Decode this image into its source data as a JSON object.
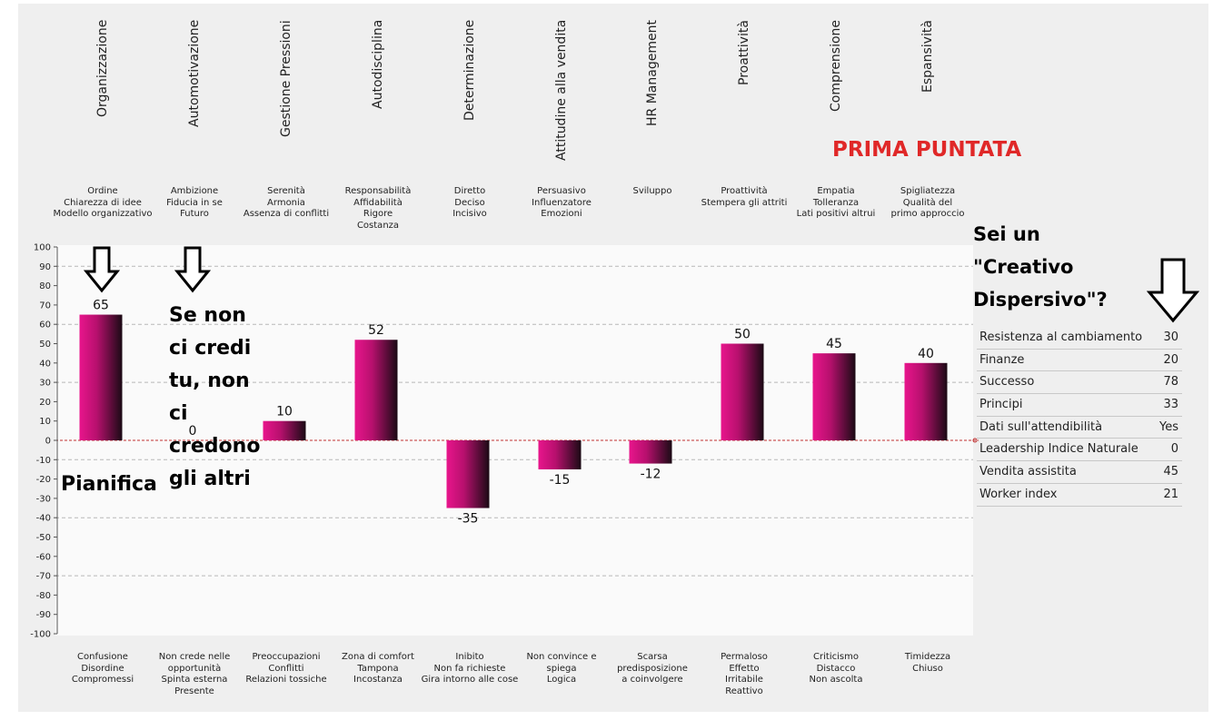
{
  "chart_data": {
    "type": "bar",
    "title": "",
    "xlabel": "",
    "ylabel": "",
    "ylim": [
      -100,
      100
    ],
    "yticks": [
      100,
      90,
      80,
      70,
      60,
      50,
      40,
      30,
      20,
      10,
      0,
      -10,
      -20,
      -30,
      -40,
      -50,
      -60,
      -70,
      -80,
      -90,
      -100
    ],
    "grid": "dashed horizontal",
    "categories": [
      "Organizzazione",
      "Automotivazione",
      "Gestione Pressioni",
      "Autodisciplina",
      "Determinazione",
      "Attitudine alla vendita",
      "HR Management",
      "Proattività",
      "Comprensione",
      "Espansività"
    ],
    "values": [
      65,
      0,
      10,
      52,
      -35,
      -15,
      -12,
      50,
      45,
      40
    ],
    "value_labels": [
      "65",
      "0",
      "10",
      "52",
      "-35",
      "-15",
      "-12",
      "50",
      "45",
      "40"
    ],
    "positive_descriptors": [
      "Ordine\nChiarezza di idee\nModello organizzativo",
      "Ambizione\nFiducia in se\nFuturo",
      "Serenità\nArmonia\nAssenza di conflitti",
      "Responsabilità\nAffidabilità\nRigore\nCostanza",
      "Diretto\nDeciso\nIncisivo",
      "Persuasivo\nInfluenzatore\nEmozioni",
      "Sviluppo",
      "Proattività\nStempera gli attriti",
      "Empatia\nTolleranza\nLati positivi altrui",
      "Spigliatezza\nQualità del\nprimo approccio"
    ],
    "negative_descriptors": [
      "Confusione\nDisordine\nCompromessi",
      "Non crede nelle\nopportunità\nSpinta esterna\nPresente",
      "Preoccupazioni\nConflitti\nRelazioni tossiche",
      "Zona di comfort\nTampona\nIncostanza",
      "Inibito\nNon fa richieste\nGira intorno alle cose",
      "Non convince e\nspiega\nLogica",
      "Scarsa\npredisposizione\na coinvolgere",
      "Permaloso\nEffetto\nIrritabile\nReattivo",
      "Criticismo\nDistacco\nNon ascolta",
      "Timidezza\nChiuso"
    ],
    "colors": {
      "bar_top": "#e8158c",
      "bar_bottom": "#1a0a14",
      "zero_line": "#c03030",
      "grid": "#b8b8b8"
    }
  },
  "annotations": {
    "prima_puntata": "PRIMA PUNTATA",
    "sei_un": "Sei un\n\"Creativo\nDispersivo\"?",
    "se_non": "Se non\nci credi\ntu, non\nci\ncredono\ngli altri",
    "pianifica": "Pianifica",
    "arrow_icons": [
      "down-arrow-icon",
      "down-arrow-icon",
      "down-arrow-icon"
    ]
  },
  "scores": [
    {
      "label": "Resistenza al cambiamento",
      "value": "30"
    },
    {
      "label": "Finanze",
      "value": "20"
    },
    {
      "label": "Successo",
      "value": "78"
    },
    {
      "label": "Principi",
      "value": "33"
    },
    {
      "label": "Dati sull'attendibilità",
      "value": "Yes"
    },
    {
      "label": "Leadership Indice Naturale",
      "value": "0"
    },
    {
      "label": "Vendita assistita",
      "value": "45"
    },
    {
      "label": "Worker index",
      "value": "21"
    }
  ]
}
